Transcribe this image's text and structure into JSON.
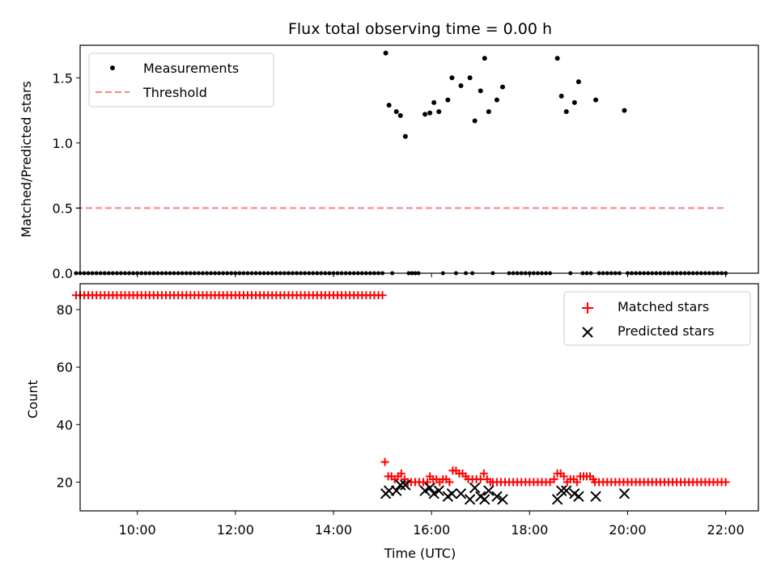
{
  "chart_data": [
    {
      "type": "scatter",
      "title": "Flux total observing time = 0.00 h",
      "xlabel": "",
      "ylabel": "Matched/Predicted stars",
      "xlim": [
        "08:50",
        "22:40"
      ],
      "ylim": [
        0,
        1.75
      ],
      "x_tick_marks": [
        "10:00",
        "12:00",
        "14:00",
        "16:00",
        "18:00",
        "20:00",
        "22:00"
      ],
      "y_ticks": [
        "0.0",
        "0.5",
        "1.0",
        "1.5"
      ],
      "grid": false,
      "legend_position": "top-left",
      "series": [
        {
          "name": "Measurements",
          "style": "points",
          "color": "#000000",
          "points": [
            {
              "x": "15:04",
              "y": 1.69
            },
            {
              "x": "15:08",
              "y": 1.29
            },
            {
              "x": "15:17",
              "y": 1.24
            },
            {
              "x": "15:22",
              "y": 1.21
            },
            {
              "x": "15:28",
              "y": 1.05
            },
            {
              "x": "15:52",
              "y": 1.22
            },
            {
              "x": "15:58",
              "y": 1.23
            },
            {
              "x": "16:03",
              "y": 1.31
            },
            {
              "x": "16:09",
              "y": 1.24
            },
            {
              "x": "16:20",
              "y": 1.33
            },
            {
              "x": "16:25",
              "y": 1.5
            },
            {
              "x": "16:36",
              "y": 1.44
            },
            {
              "x": "16:47",
              "y": 1.5
            },
            {
              "x": "16:53",
              "y": 1.17
            },
            {
              "x": "17:00",
              "y": 1.4
            },
            {
              "x": "17:05",
              "y": 1.65
            },
            {
              "x": "17:10",
              "y": 1.24
            },
            {
              "x": "17:20",
              "y": 1.33
            },
            {
              "x": "17:27",
              "y": 1.43
            },
            {
              "x": "18:34",
              "y": 1.65
            },
            {
              "x": "18:39",
              "y": 1.36
            },
            {
              "x": "18:45",
              "y": 1.24
            },
            {
              "x": "18:55",
              "y": 1.31
            },
            {
              "x": "19:00",
              "y": 1.47
            },
            {
              "x": "19:21",
              "y": 1.33
            },
            {
              "x": "19:56",
              "y": 1.25
            }
          ],
          "zero_points": {
            "y": 0,
            "x": [
              "08:45",
              "08:50",
              "08:55",
              "09:00",
              "09:05",
              "09:10",
              "09:15",
              "09:20",
              "09:25",
              "09:30",
              "09:35",
              "09:40",
              "09:45",
              "09:50",
              "09:55",
              "10:00",
              "10:05",
              "10:10",
              "10:15",
              "10:20",
              "10:25",
              "10:30",
              "10:35",
              "10:40",
              "10:45",
              "10:50",
              "10:55",
              "11:00",
              "11:05",
              "11:10",
              "11:15",
              "11:20",
              "11:25",
              "11:30",
              "11:35",
              "11:40",
              "11:45",
              "11:50",
              "11:55",
              "12:00",
              "12:05",
              "12:10",
              "12:15",
              "12:20",
              "12:25",
              "12:30",
              "12:35",
              "12:40",
              "12:45",
              "12:50",
              "12:55",
              "13:00",
              "13:05",
              "13:10",
              "13:15",
              "13:20",
              "13:25",
              "13:30",
              "13:35",
              "13:40",
              "13:45",
              "13:50",
              "13:55",
              "14:00",
              "14:05",
              "14:10",
              "14:15",
              "14:20",
              "14:25",
              "14:30",
              "14:35",
              "14:40",
              "14:45",
              "14:50",
              "14:55",
              "15:00",
              "15:12",
              "15:32",
              "15:36",
              "15:40",
              "15:44",
              "16:14",
              "16:30",
              "16:42",
              "16:50",
              "17:15",
              "17:35",
              "17:40",
              "17:45",
              "17:50",
              "17:55",
              "18:00",
              "18:05",
              "18:10",
              "18:15",
              "18:20",
              "18:25",
              "18:50",
              "19:05",
              "19:10",
              "19:15",
              "19:25",
              "19:30",
              "19:35",
              "19:40",
              "19:45",
              "19:50",
              "20:00",
              "20:05",
              "20:10",
              "20:15",
              "20:20",
              "20:25",
              "20:30",
              "20:35",
              "20:40",
              "20:45",
              "20:50",
              "20:55",
              "21:00",
              "21:05",
              "21:10",
              "21:15",
              "21:20",
              "21:25",
              "21:30",
              "21:35",
              "21:40",
              "21:45",
              "21:50",
              "21:55",
              "22:00"
            ]
          }
        },
        {
          "name": "Threshold",
          "style": "dashed-line",
          "color": "#ff7f7f",
          "x": [
            "08:45",
            "22:00"
          ],
          "y": [
            0.5,
            0.5
          ]
        }
      ]
    },
    {
      "type": "scatter",
      "title": "",
      "xlabel": "Time (UTC)",
      "ylabel": "Count",
      "xlim": [
        "08:50",
        "22:40"
      ],
      "ylim": [
        10,
        89
      ],
      "x_ticks": [
        "10:00",
        "12:00",
        "14:00",
        "16:00",
        "18:00",
        "20:00",
        "22:00"
      ],
      "y_ticks": [
        "20",
        "40",
        "60",
        "80"
      ],
      "grid": false,
      "legend_position": "top-right",
      "series": [
        {
          "name": "Matched stars",
          "marker": "plus",
          "color": "#ff0000",
          "runs": [
            {
              "from": "08:45",
              "to": "15:00",
              "step_min": 5,
              "y": 85
            },
            {
              "from": "15:45",
              "to": "15:55",
              "step_min": 5,
              "y": 20
            },
            {
              "from": "16:45",
              "to": "16:55",
              "step_min": 5,
              "y": 21
            },
            {
              "from": "17:15",
              "to": "18:25",
              "step_min": 5,
              "y": 20
            },
            {
              "from": "19:20",
              "to": "22:00",
              "step_min": 5,
              "y": 20
            }
          ],
          "points": [
            {
              "x": "15:03",
              "y": 27
            },
            {
              "x": "15:07",
              "y": 22
            },
            {
              "x": "15:11",
              "y": 22
            },
            {
              "x": "15:15",
              "y": 21
            },
            {
              "x": "15:19",
              "y": 22
            },
            {
              "x": "15:23",
              "y": 23
            },
            {
              "x": "15:27",
              "y": 21
            },
            {
              "x": "15:31",
              "y": 20
            },
            {
              "x": "15:35",
              "y": 20
            },
            {
              "x": "15:40",
              "y": 20
            },
            {
              "x": "15:58",
              "y": 22
            },
            {
              "x": "16:02",
              "y": 21
            },
            {
              "x": "16:06",
              "y": 21
            },
            {
              "x": "16:10",
              "y": 20
            },
            {
              "x": "16:14",
              "y": 21
            },
            {
              "x": "16:18",
              "y": 21
            },
            {
              "x": "16:22",
              "y": 20
            },
            {
              "x": "16:26",
              "y": 24
            },
            {
              "x": "16:30",
              "y": 24
            },
            {
              "x": "16:34",
              "y": 23
            },
            {
              "x": "16:38",
              "y": 23
            },
            {
              "x": "16:42",
              "y": 22
            },
            {
              "x": "17:00",
              "y": 21
            },
            {
              "x": "17:04",
              "y": 23
            },
            {
              "x": "17:08",
              "y": 21
            },
            {
              "x": "17:12",
              "y": 20
            },
            {
              "x": "18:30",
              "y": 21
            },
            {
              "x": "18:34",
              "y": 23
            },
            {
              "x": "18:38",
              "y": 23
            },
            {
              "x": "18:42",
              "y": 22
            },
            {
              "x": "18:46",
              "y": 20
            },
            {
              "x": "18:50",
              "y": 21
            },
            {
              "x": "18:54",
              "y": 21
            },
            {
              "x": "18:58",
              "y": 20
            },
            {
              "x": "19:02",
              "y": 22
            },
            {
              "x": "19:06",
              "y": 22
            },
            {
              "x": "19:10",
              "y": 22
            },
            {
              "x": "19:14",
              "y": 22
            },
            {
              "x": "19:18",
              "y": 21
            }
          ]
        },
        {
          "name": "Predicted stars",
          "marker": "x",
          "color": "#000000",
          "points": [
            {
              "x": "15:04",
              "y": 16
            },
            {
              "x": "15:08",
              "y": 17
            },
            {
              "x": "15:17",
              "y": 17
            },
            {
              "x": "15:22",
              "y": 19
            },
            {
              "x": "15:28",
              "y": 19
            },
            {
              "x": "15:52",
              "y": 17
            },
            {
              "x": "15:58",
              "y": 18
            },
            {
              "x": "16:03",
              "y": 16
            },
            {
              "x": "16:09",
              "y": 17
            },
            {
              "x": "16:20",
              "y": 15
            },
            {
              "x": "16:25",
              "y": 16
            },
            {
              "x": "16:36",
              "y": 16
            },
            {
              "x": "16:47",
              "y": 14
            },
            {
              "x": "16:53",
              "y": 18
            },
            {
              "x": "17:00",
              "y": 15
            },
            {
              "x": "17:05",
              "y": 14
            },
            {
              "x": "17:10",
              "y": 17
            },
            {
              "x": "17:20",
              "y": 15
            },
            {
              "x": "17:27",
              "y": 14
            },
            {
              "x": "18:34",
              "y": 14
            },
            {
              "x": "18:39",
              "y": 17
            },
            {
              "x": "18:45",
              "y": 17
            },
            {
              "x": "18:55",
              "y": 16
            },
            {
              "x": "19:00",
              "y": 15
            },
            {
              "x": "19:21",
              "y": 15
            },
            {
              "x": "19:56",
              "y": 16
            }
          ]
        }
      ]
    }
  ]
}
